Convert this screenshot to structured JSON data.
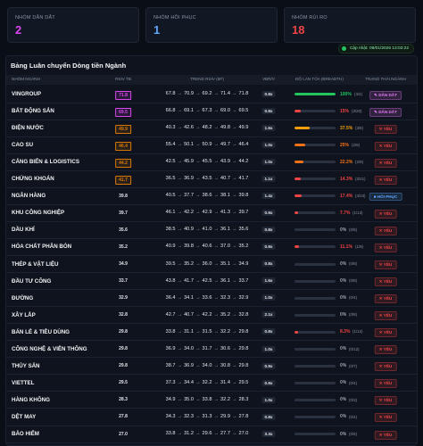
{
  "cards": [
    {
      "label": "NHÓM DẪN DẮT",
      "value": "2",
      "color": "#d946ef"
    },
    {
      "label": "NHÓM HỒI PHỤC",
      "value": "1",
      "color": "#60a5fa"
    },
    {
      "label": "NHÓM RỦI RO",
      "value": "18",
      "color": "#ef4444"
    }
  ],
  "updated": "Cập nhật: 09/01/2026 13:03:22",
  "table": {
    "title": "Bảng Luân chuyển Dòng tiền Ngành",
    "headers": [
      "NHÓM NGÀNH",
      "RSIV TB",
      "TREND RSIV (5P)",
      "VBR/V",
      "ĐỘ LAN TỎA (BREADTH)",
      "TRẠNG THÁI NGÀNH"
    ],
    "rows": [
      {
        "name": "VINGROUP",
        "rsiv": "71.8",
        "rsiv_color": "#d946ef",
        "trend": [
          "67.8",
          "70.9",
          "69.2",
          "71.4",
          "71.8"
        ],
        "vbr": "0.8x",
        "breadth": 100,
        "breadth_label": "100%",
        "count": "(4/4)",
        "breadth_color": "#22c55e",
        "status": "DẪN DẮT",
        "status_color": "#e879f9"
      },
      {
        "name": "BẤT ĐỘNG SẢN",
        "rsiv": "69.5",
        "rsiv_color": "#d946ef",
        "trend": [
          "66.8",
          "69.1",
          "67.3",
          "69.0",
          "69.5"
        ],
        "vbr": "0.8x",
        "breadth": 15,
        "breadth_label": "15%",
        "count": "(3/20)",
        "breadth_color": "#ef4444",
        "status": "DẪN DẮT",
        "status_color": "#e879f9"
      },
      {
        "name": "ĐIỆN NƯỚC",
        "rsiv": "49.9",
        "rsiv_color": "#d97706",
        "trend": [
          "40.3",
          "42.6",
          "48.2",
          "49.8",
          "49.9"
        ],
        "vbr": "1.6x",
        "breadth": 37.5,
        "breadth_label": "37.5%",
        "count": "(3/8)",
        "breadth_color": "#f59e0b",
        "status": "YẾU",
        "status_color": "#ef4444"
      },
      {
        "name": "CAO SU",
        "rsiv": "46.4",
        "rsiv_color": "#d97706",
        "trend": [
          "55.4",
          "50.1",
          "50.9",
          "49.7",
          "46.4"
        ],
        "vbr": "1.0x",
        "breadth": 25,
        "breadth_label": "25%",
        "count": "(2/8)",
        "breadth_color": "#f97316",
        "status": "YẾU",
        "status_color": "#ef4444"
      },
      {
        "name": "CẢNG BIỂN & LOGISTICS",
        "rsiv": "44.2",
        "rsiv_color": "#d97706",
        "trend": [
          "42.5",
          "45.9",
          "45.5",
          "43.9",
          "44.2"
        ],
        "vbr": "1.0x",
        "breadth": 22.2,
        "breadth_label": "22.2%",
        "count": "(2/9)",
        "breadth_color": "#f97316",
        "status": "YẾU",
        "status_color": "#ef4444"
      },
      {
        "name": "CHỨNG KHOÁN",
        "rsiv": "41.7",
        "rsiv_color": "#d97706",
        "trend": [
          "36.5",
          "36.9",
          "43.5",
          "40.7",
          "41.7"
        ],
        "vbr": "1.1x",
        "breadth": 14.3,
        "breadth_label": "14.3%",
        "count": "(3/21)",
        "breadth_color": "#ef4444",
        "status": "YẾU",
        "status_color": "#ef4444"
      },
      {
        "name": "NGÂN HÀNG",
        "rsiv": "39.8",
        "trend": [
          "40.5",
          "37.7",
          "38.6",
          "38.1",
          "39.8"
        ],
        "vbr": "1.4x",
        "breadth": 17.4,
        "breadth_label": "17.4%",
        "count": "(4/23)",
        "breadth_color": "#ef4444",
        "status": "HỒI PHỤC",
        "status_color": "#60a5fa"
      },
      {
        "name": "KHU CÔNG NGHIỆP",
        "rsiv": "39.7",
        "trend": [
          "46.1",
          "42.2",
          "42.9",
          "41.3",
          "39.7"
        ],
        "vbr": "0.9x",
        "breadth": 7.7,
        "breadth_label": "7.7%",
        "count": "(1/13)",
        "breadth_color": "#ef4444",
        "status": "YẾU",
        "status_color": "#ef4444"
      },
      {
        "name": "DẦU KHÍ",
        "rsiv": "35.6",
        "trend": [
          "38.5",
          "40.9",
          "41.0",
          "36.1",
          "35.6"
        ],
        "vbr": "0.8x",
        "breadth": 0,
        "breadth_label": "0%",
        "count": "(0/8)",
        "breadth_color": "#9ca3af",
        "status": "YẾU",
        "status_color": "#ef4444"
      },
      {
        "name": "HÓA CHẤT PHÂN BÓN",
        "rsiv": "35.2",
        "trend": [
          "40.9",
          "39.8",
          "40.6",
          "37.0",
          "35.2"
        ],
        "vbr": "0.9x",
        "breadth": 11.1,
        "breadth_label": "11.1%",
        "count": "(1/9)",
        "breadth_color": "#ef4444",
        "status": "YẾU",
        "status_color": "#ef4444"
      },
      {
        "name": "THÉP & VẬT LIỆU",
        "rsiv": "34.9",
        "trend": [
          "39.5",
          "35.2",
          "36.0",
          "35.1",
          "34.9"
        ],
        "vbr": "0.8x",
        "breadth": 0,
        "breadth_label": "0%",
        "count": "(0/8)",
        "breadth_color": "#9ca3af",
        "status": "YẾU",
        "status_color": "#ef4444"
      },
      {
        "name": "ĐẦU TƯ CÔNG",
        "rsiv": "33.7",
        "trend": [
          "43.8",
          "41.7",
          "42.5",
          "36.1",
          "33.7"
        ],
        "vbr": "1.6x",
        "breadth": 0,
        "breadth_label": "0%",
        "count": "(0/8)",
        "breadth_color": "#9ca3af",
        "status": "YẾU",
        "status_color": "#ef4444"
      },
      {
        "name": "ĐƯỜNG",
        "rsiv": "32.9",
        "trend": [
          "36.4",
          "34.1",
          "33.6",
          "32.3",
          "32.9"
        ],
        "vbr": "1.0x",
        "breadth": 0,
        "breadth_label": "0%",
        "count": "(0/4)",
        "breadth_color": "#9ca3af",
        "status": "YẾU",
        "status_color": "#ef4444"
      },
      {
        "name": "XÂY LẮP",
        "rsiv": "32.8",
        "trend": [
          "42.7",
          "40.7",
          "42.2",
          "35.2",
          "32.8"
        ],
        "vbr": "2.1x",
        "breadth": 0,
        "breadth_label": "0%",
        "count": "(0/8)",
        "breadth_color": "#9ca3af",
        "status": "YẾU",
        "status_color": "#ef4444"
      },
      {
        "name": "BÁN LẺ & TIÊU DÙNG",
        "rsiv": "29.8",
        "trend": [
          "33.8",
          "31.1",
          "31.5",
          "32.2",
          "29.8"
        ],
        "vbr": "0.8x",
        "breadth": 8.3,
        "breadth_label": "8.3%",
        "count": "(1/12)",
        "breadth_color": "#ef4444",
        "status": "YẾU",
        "status_color": "#ef4444"
      },
      {
        "name": "CÔNG NGHỆ & VIỄN THÔNG",
        "rsiv": "29.8",
        "trend": [
          "36.9",
          "34.0",
          "31.7",
          "30.6",
          "29.8"
        ],
        "vbr": "1.0x",
        "breadth": 0,
        "breadth_label": "0%",
        "count": "(0/12)",
        "breadth_color": "#9ca3af",
        "status": "YẾU",
        "status_color": "#ef4444"
      },
      {
        "name": "THỦY SẢN",
        "rsiv": "29.8",
        "trend": [
          "38.7",
          "36.9",
          "34.0",
          "30.8",
          "29.8"
        ],
        "vbr": "0.9x",
        "breadth": 0,
        "breadth_label": "0%",
        "count": "(0/7)",
        "breadth_color": "#9ca3af",
        "status": "YẾU",
        "status_color": "#ef4444"
      },
      {
        "name": "VIETTEL",
        "rsiv": "29.5",
        "trend": [
          "37.3",
          "34.4",
          "32.2",
          "31.4",
          "29.5"
        ],
        "vbr": "0.9x",
        "breadth": 0,
        "breadth_label": "0%",
        "count": "(0/4)",
        "breadth_color": "#9ca3af",
        "status": "YẾU",
        "status_color": "#ef4444"
      },
      {
        "name": "HÀNG KHÔNG",
        "rsiv": "28.3",
        "trend": [
          "34.9",
          "35.0",
          "33.8",
          "32.2",
          "28.3"
        ],
        "vbr": "1.0x",
        "breadth": 0,
        "breadth_label": "0%",
        "count": "(0/3)",
        "breadth_color": "#9ca3af",
        "status": "YẾU",
        "status_color": "#ef4444"
      },
      {
        "name": "DỆT MAY",
        "rsiv": "27.8",
        "trend": [
          "34.3",
          "32.3",
          "31.3",
          "29.9",
          "27.8"
        ],
        "vbr": "0.8x",
        "breadth": 0,
        "breadth_label": "0%",
        "count": "(0/4)",
        "breadth_color": "#9ca3af",
        "status": "YẾU",
        "status_color": "#ef4444"
      },
      {
        "name": "BẢO HIỂM",
        "rsiv": "27.0",
        "trend": [
          "33.8",
          "31.2",
          "29.6",
          "27.7",
          "27.0"
        ],
        "vbr": "3.3x",
        "breadth": 0,
        "breadth_label": "0%",
        "count": "(0/5)",
        "breadth_color": "#9ca3af",
        "status": "YẾU",
        "status_color": "#ef4444"
      }
    ]
  }
}
